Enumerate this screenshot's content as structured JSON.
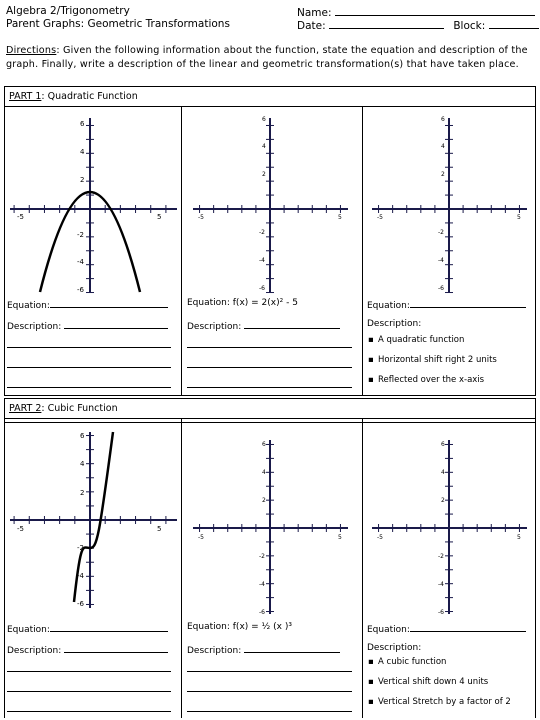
{
  "header": {
    "course": "Algebra 2/Trigonometry",
    "topic": "Parent Graphs: Geometric Transformations",
    "name_label": "Name:",
    "date_label": "Date:",
    "block_label": "Block:"
  },
  "directions": {
    "label": "Directions",
    "text": ": Given the following information about the function, state the equation and description of the graph. Finally, write a description of the linear and geometric transformation(s) that have taken place."
  },
  "part1": {
    "label": "PART 1",
    "title": ": Quadratic Function",
    "graphs": [
      {
        "ticks": {
          "xmin": "-5",
          "xmax": "5",
          "y6": "6",
          "y4": "4",
          "y2": "2",
          "yn2": "-2",
          "yn4": "-4",
          "yn6": "-6"
        }
      },
      {
        "ticks": {
          "xmin": "-5",
          "xmax": "5",
          "y6": "6",
          "y4": "4",
          "y2": "2",
          "yn2": "-2",
          "yn4": "-4",
          "yn6": "-6"
        }
      },
      {
        "ticks": {
          "xmin": "-5",
          "xmax": "5",
          "y6": "6",
          "y4": "4",
          "y2": "2",
          "yn2": "-2",
          "yn4": "-4",
          "yn6": "-6"
        }
      }
    ],
    "col1": {
      "equation_label": "Equation:",
      "description_label": "Description:"
    },
    "col2": {
      "equation_label": "Equation:",
      "equation_value": "f(x) =  2(x)² - 5",
      "description_label": "Description:"
    },
    "col3": {
      "equation_label": "Equation:",
      "description_label": "Description:",
      "bullets": [
        "A quadratic function",
        "Horizontal shift  right 2 units",
        "Reflected over the x-axis"
      ]
    }
  },
  "part2": {
    "label": "PART 2",
    "title": ": Cubic Function",
    "graphs": [
      {
        "ticks": {
          "xmin": "-5",
          "xmax": "5",
          "y6": "6",
          "y4": "4",
          "y2": "2",
          "yn2": "-2",
          "yn4": "-4",
          "yn6": "-6"
        }
      },
      {
        "ticks": {
          "xmin": "-5",
          "xmax": "5",
          "y6": "6",
          "y4": "4",
          "y2": "2",
          "yn2": "-2",
          "yn4": "-4",
          "yn6": "-6"
        }
      },
      {
        "ticks": {
          "xmin": "-5",
          "xmax": "5",
          "y6": "6",
          "y4": "4",
          "y2": "2",
          "yn2": "-2",
          "yn4": "-4",
          "yn6": "-6"
        }
      }
    ],
    "col1": {
      "equation_label": "Equation:",
      "description_label": "Description:"
    },
    "col2": {
      "equation_label": "Equation:",
      "equation_value": "f(x) = ½ (x )³",
      "description_label": "Description:"
    },
    "col3": {
      "equation_label": "Equation:",
      "description_label": "Description:",
      "bullets": [
        "A cubic function",
        "Vertical shift  down 4 units",
        "Vertical Stretch by a factor of 2"
      ]
    }
  }
}
